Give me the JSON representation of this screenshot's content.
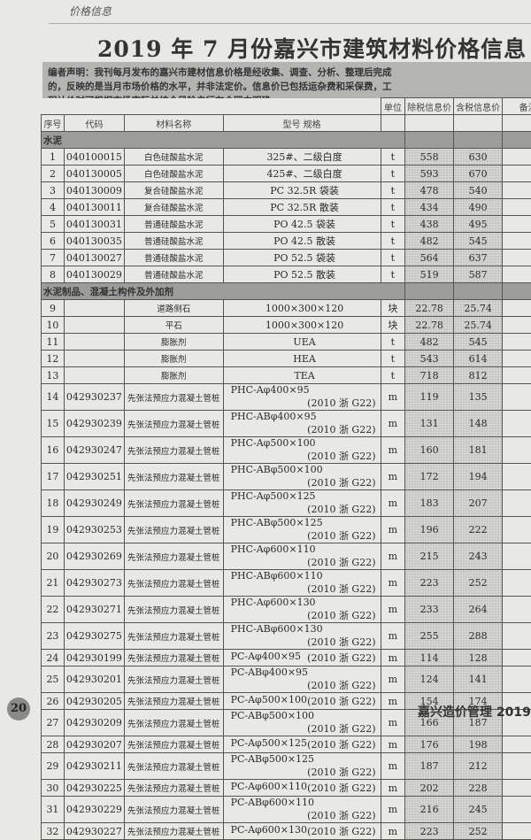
{
  "header": {
    "section_label": "价格信息",
    "title": "2019 年 7 月份嘉兴市建筑材料价格信息",
    "notice": "编者声明：我刊每月发布的嘉兴市建材信息价格是经收集、调查、分析、整理后完成的，反映的是当月市场价格的水平，并非法定价。信息价已包括运杂费和采保费，工程计价时可根据市场实际并结合风险自行在合同中明确。"
  },
  "table": {
    "columns": {
      "no": "序号",
      "code": "代码",
      "name": "材料名称",
      "spec": "型号 规格",
      "unit": "单位",
      "price_ex": "除税信息价",
      "price_in": "含税信息价",
      "remark": "备注"
    },
    "sections": [
      {
        "title": "水泥",
        "rows": [
          {
            "no": "1",
            "code": "040100015",
            "name": "白色硅酸盐水泥",
            "spec": "325#、二级白度",
            "std": "",
            "unit": "t",
            "ex": "558",
            "in": "630"
          },
          {
            "no": "2",
            "code": "040130005",
            "name": "白色硅酸盐水泥",
            "spec": "425#、二级白度",
            "std": "",
            "unit": "t",
            "ex": "593",
            "in": "670"
          },
          {
            "no": "3",
            "code": "040130009",
            "name": "复合硅酸盐水泥",
            "spec": "PC 32.5R 袋装",
            "std": "",
            "unit": "t",
            "ex": "478",
            "in": "540"
          },
          {
            "no": "4",
            "code": "040130011",
            "name": "复合硅酸盐水泥",
            "spec": "PC 32.5R 散装",
            "std": "",
            "unit": "t",
            "ex": "434",
            "in": "490"
          },
          {
            "no": "5",
            "code": "040130031",
            "name": "普通硅酸盐水泥",
            "spec": "PO 42.5 袋装",
            "std": "",
            "unit": "t",
            "ex": "438",
            "in": "495"
          },
          {
            "no": "6",
            "code": "040130035",
            "name": "普通硅酸盐水泥",
            "spec": "PO 42.5 散装",
            "std": "",
            "unit": "t",
            "ex": "482",
            "in": "545"
          },
          {
            "no": "7",
            "code": "040130027",
            "name": "普通硅酸盐水泥",
            "spec": "PO 52.5 袋装",
            "std": "",
            "unit": "t",
            "ex": "564",
            "in": "637"
          },
          {
            "no": "8",
            "code": "040130029",
            "name": "普通硅酸盐水泥",
            "spec": "PO 52.5 散装",
            "std": "",
            "unit": "t",
            "ex": "519",
            "in": "587"
          }
        ]
      },
      {
        "title": "水泥制品、混凝土构件及外加剂",
        "rows": [
          {
            "no": "9",
            "code": "",
            "name": "道路侧石",
            "spec": "1000×300×120",
            "std": "",
            "unit": "块",
            "ex": "22.78",
            "in": "25.74"
          },
          {
            "no": "10",
            "code": "",
            "name": "平石",
            "spec": "1000×300×120",
            "std": "",
            "unit": "块",
            "ex": "22.78",
            "in": "25.74"
          },
          {
            "no": "11",
            "code": "",
            "name": "膨胀剂",
            "spec": "UEA",
            "std": "",
            "unit": "t",
            "ex": "482",
            "in": "545"
          },
          {
            "no": "12",
            "code": "",
            "name": "膨胀剂",
            "spec": "HEA",
            "std": "",
            "unit": "t",
            "ex": "543",
            "in": "614"
          },
          {
            "no": "13",
            "code": "",
            "name": "膨胀剂",
            "spec": "TEA",
            "std": "",
            "unit": "t",
            "ex": "718",
            "in": "812"
          },
          {
            "no": "14",
            "code": "042930237",
            "name": "先张法预应力混凝土管桩",
            "spec": "PHC-Aφ400×95",
            "std": "(2010 浙 G22)",
            "unit": "m",
            "ex": "119",
            "in": "135"
          },
          {
            "no": "15",
            "code": "042930239",
            "name": "先张法预应力混凝土管桩",
            "spec": "PHC-ABφ400×95",
            "std": "(2010 浙 G22)",
            "unit": "m",
            "ex": "131",
            "in": "148"
          },
          {
            "no": "16",
            "code": "042930247",
            "name": "先张法预应力混凝土管桩",
            "spec": "PHC-Aφ500×100",
            "std": "(2010 浙 G22)",
            "unit": "m",
            "ex": "160",
            "in": "181"
          },
          {
            "no": "17",
            "code": "042930251",
            "name": "先张法预应力混凝土管桩",
            "spec": "PHC-ABφ500×100",
            "std": "(2010 浙 G22)",
            "unit": "m",
            "ex": "172",
            "in": "194"
          },
          {
            "no": "18",
            "code": "042930249",
            "name": "先张法预应力混凝土管桩",
            "spec": "PHC-Aφ500×125",
            "std": "(2010 浙 G22)",
            "unit": "m",
            "ex": "183",
            "in": "207"
          },
          {
            "no": "19",
            "code": "042930253",
            "name": "先张法预应力混凝土管桩",
            "spec": "PHC-ABφ500×125",
            "std": "(2010 浙 G22)",
            "unit": "m",
            "ex": "196",
            "in": "222"
          },
          {
            "no": "20",
            "code": "042930269",
            "name": "先张法预应力混凝土管桩",
            "spec": "PHC-Aφ600×110",
            "std": "(2010 浙 G22)",
            "unit": "m",
            "ex": "215",
            "in": "243"
          },
          {
            "no": "21",
            "code": "042930273",
            "name": "先张法预应力混凝土管桩",
            "spec": "PHC-ABφ600×110",
            "std": "(2010 浙 G22)",
            "unit": "m",
            "ex": "223",
            "in": "252"
          },
          {
            "no": "22",
            "code": "042930271",
            "name": "先张法预应力混凝土管桩",
            "spec": "PHC-Aφ600×130",
            "std": "(2010 浙 G22)",
            "unit": "m",
            "ex": "233",
            "in": "264"
          },
          {
            "no": "23",
            "code": "042930275",
            "name": "先张法预应力混凝土管桩",
            "spec": "PHC-ABφ600×130",
            "std": "(2010 浙 G22)",
            "unit": "m",
            "ex": "255",
            "in": "288"
          },
          {
            "no": "24",
            "code": "042930199",
            "name": "先张法预应力混凝土管桩",
            "spec": "PC-Aφ400×95",
            "std": "(2010 浙 G22)",
            "unit": "m",
            "ex": "114",
            "in": "128"
          },
          {
            "no": "25",
            "code": "042930201",
            "name": "先张法预应力混凝土管桩",
            "spec": "PC-ABφ400×95",
            "std": "(2010 浙 G22)",
            "unit": "m",
            "ex": "124",
            "in": "141"
          },
          {
            "no": "26",
            "code": "042930205",
            "name": "先张法预应力混凝土管桩",
            "spec": "PC-Aφ500×100",
            "std": "(2010 浙 G22)",
            "unit": "m",
            "ex": "154",
            "in": "174"
          },
          {
            "no": "27",
            "code": "042930209",
            "name": "先张法预应力混凝土管桩",
            "spec": "PC-ABφ500×100",
            "std": "(2010 浙 G22)",
            "unit": "m",
            "ex": "166",
            "in": "187"
          },
          {
            "no": "28",
            "code": "042930207",
            "name": "先张法预应力混凝土管桩",
            "spec": "PC-Aφ500×125",
            "std": "(2010 浙 G22)",
            "unit": "m",
            "ex": "176",
            "in": "198"
          },
          {
            "no": "29",
            "code": "042930211",
            "name": "先张法预应力混凝土管桩",
            "spec": "PC-ABφ500×125",
            "std": "(2010 浙 G22)",
            "unit": "m",
            "ex": "187",
            "in": "212"
          },
          {
            "no": "30",
            "code": "042930225",
            "name": "先张法预应力混凝土管桩",
            "spec": "PC-Aφ600×110",
            "std": "(2010 浙 G22)",
            "unit": "m",
            "ex": "202",
            "in": "228"
          },
          {
            "no": "31",
            "code": "042930229",
            "name": "先张法预应力混凝土管桩",
            "spec": "PC-ABφ600×110",
            "std": "(2010 浙 G22)",
            "unit": "m",
            "ex": "216",
            "in": "245"
          },
          {
            "no": "32",
            "code": "042930227",
            "name": "先张法预应力混凝土管桩",
            "spec": "PC-Aφ600×130",
            "std": "(2010 浙 G22)",
            "unit": "m",
            "ex": "223",
            "in": "252"
          }
        ]
      }
    ]
  },
  "footer": {
    "page_number": "20",
    "publication": "嘉兴造价管理 2019"
  }
}
